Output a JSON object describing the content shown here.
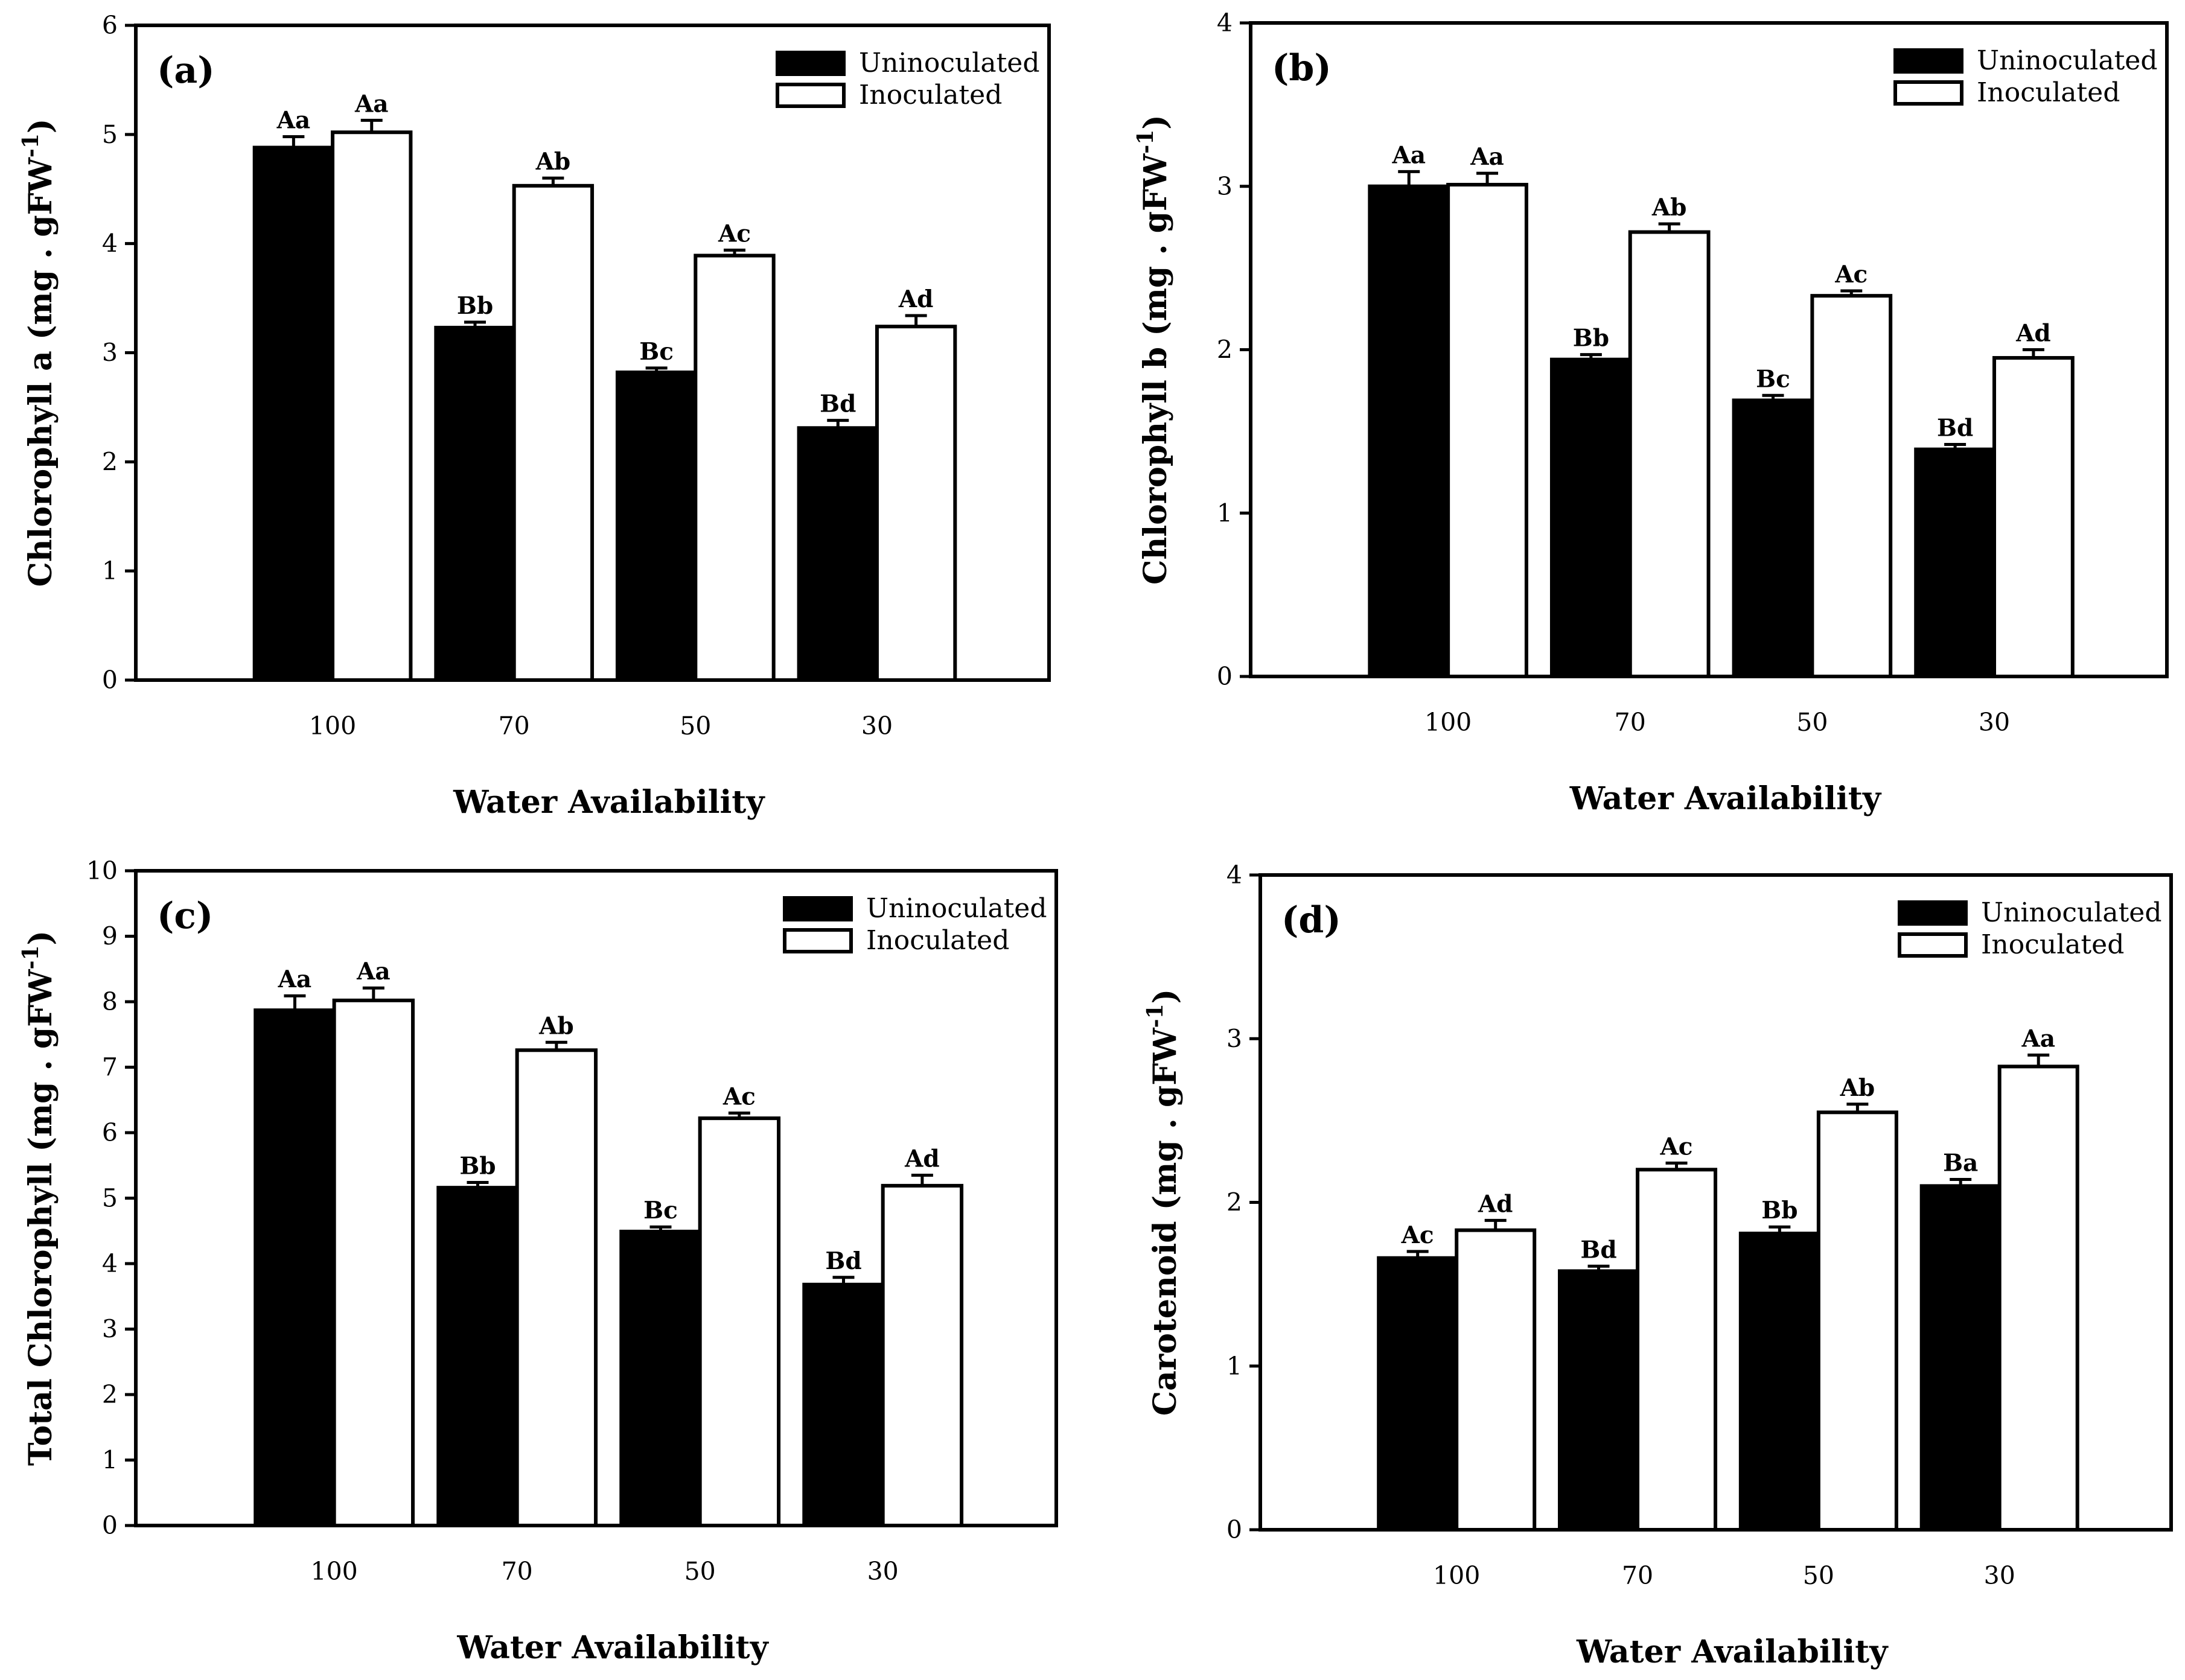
{
  "chart_data": [
    {
      "type": "bar",
      "panel_label": "(a)",
      "xlabel": "Water Availability",
      "ylabel": "Chlorophyll a (mg . gFW",
      "ylabel_sup": "-1",
      "ylabel_close": ")",
      "categories": [
        "100",
        "70",
        "50",
        "30"
      ],
      "ylim": [
        0,
        6
      ],
      "yticks": [
        0,
        1,
        2,
        3,
        4,
        5,
        6
      ],
      "legend_position": "top-right",
      "series": [
        {
          "name": "Uninoculated",
          "color": "#000000",
          "values": [
            4.88,
            3.23,
            2.82,
            2.31
          ],
          "errors": [
            0.1,
            0.05,
            0.04,
            0.07
          ],
          "labels": [
            "Aa",
            "Bb",
            "Bc",
            "Bd"
          ]
        },
        {
          "name": "Inoculated",
          "color": "#ffffff",
          "values": [
            5.02,
            4.53,
            3.89,
            3.24
          ],
          "errors": [
            0.11,
            0.07,
            0.05,
            0.1
          ],
          "labels": [
            "Aa",
            "Ab",
            "Ac",
            "Ad"
          ]
        }
      ]
    },
    {
      "type": "bar",
      "panel_label": "(b)",
      "xlabel": "Water Availability",
      "ylabel": "Chlorophyll b (mg . gFW",
      "ylabel_sup": "-1",
      "ylabel_close": ")",
      "categories": [
        "100",
        "70",
        "50",
        "30"
      ],
      "ylim": [
        0,
        4
      ],
      "yticks": [
        0,
        1,
        2,
        3,
        4
      ],
      "legend_position": "top-right",
      "series": [
        {
          "name": "Uninoculated",
          "color": "#000000",
          "values": [
            3.0,
            1.94,
            1.69,
            1.39
          ],
          "errors": [
            0.09,
            0.03,
            0.03,
            0.03
          ],
          "labels": [
            "Aa",
            "Bb",
            "Bc",
            "Bd"
          ]
        },
        {
          "name": "Inoculated",
          "color": "#ffffff",
          "values": [
            3.01,
            2.72,
            2.33,
            1.95
          ],
          "errors": [
            0.07,
            0.05,
            0.03,
            0.05
          ],
          "labels": [
            "Aa",
            "Ab",
            "Ac",
            "Ad"
          ]
        }
      ]
    },
    {
      "type": "bar",
      "panel_label": "(c)",
      "xlabel": "Water Availability",
      "ylabel": "Total Chlorophyll  (mg . gFW",
      "ylabel_sup": "-1",
      "ylabel_close": ")",
      "categories": [
        "100",
        "70",
        "50",
        "30"
      ],
      "ylim": [
        0,
        10
      ],
      "yticks": [
        0,
        1,
        2,
        3,
        4,
        5,
        6,
        7,
        8,
        9,
        10
      ],
      "legend_position": "top-right",
      "series": [
        {
          "name": "Uninoculated",
          "color": "#000000",
          "values": [
            7.87,
            5.16,
            4.49,
            3.68
          ],
          "errors": [
            0.22,
            0.08,
            0.07,
            0.11
          ],
          "labels": [
            "Aa",
            "Bb",
            "Bc",
            "Bd"
          ]
        },
        {
          "name": "Inoculated",
          "color": "#ffffff",
          "values": [
            8.02,
            7.26,
            6.22,
            5.19
          ],
          "errors": [
            0.19,
            0.12,
            0.08,
            0.16
          ],
          "labels": [
            "Aa",
            "Ab",
            "Ac",
            "Ad"
          ]
        }
      ]
    },
    {
      "type": "bar",
      "panel_label": "(d)",
      "xlabel": "Water Availability",
      "ylabel": "Carotenoid (mg . gFW",
      "ylabel_sup": "-1",
      "ylabel_close": ")",
      "categories": [
        "100",
        "70",
        "50",
        "30"
      ],
      "ylim": [
        0,
        4
      ],
      "yticks": [
        0,
        1,
        2,
        3,
        4
      ],
      "legend_position": "top-right",
      "series": [
        {
          "name": "Uninoculated",
          "color": "#000000",
          "values": [
            1.66,
            1.58,
            1.81,
            2.1
          ],
          "errors": [
            0.04,
            0.03,
            0.04,
            0.04
          ],
          "labels": [
            "Ac",
            "Bd",
            "Bb",
            "Ba"
          ]
        },
        {
          "name": "Inoculated",
          "color": "#ffffff",
          "values": [
            1.83,
            2.2,
            2.55,
            2.83
          ],
          "errors": [
            0.06,
            0.04,
            0.05,
            0.07
          ],
          "labels": [
            "Ad",
            "Ac",
            "Ab",
            "Aa"
          ]
        }
      ]
    }
  ]
}
